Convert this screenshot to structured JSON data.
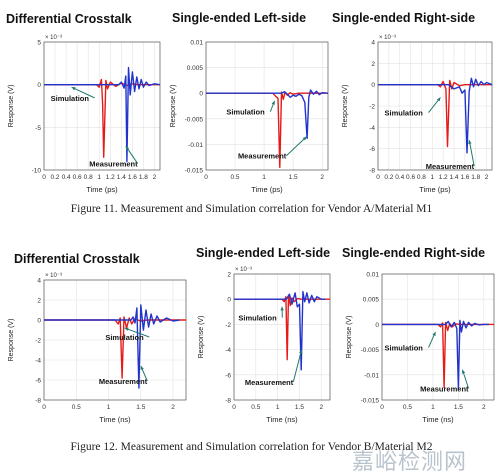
{
  "figure11": {
    "caption": "Figure 11.  Measurement and Simulation correlation for Vendor A/Material M1",
    "panels": [
      {
        "title": "Differential Crosstalk"
      },
      {
        "title": "Single-ended Left-side"
      },
      {
        "title": "Single-ended Right-side"
      }
    ]
  },
  "figure12": {
    "caption": "Figure 12.  Measurement and Simulation correlation for Vendor B/Material M2",
    "panels": [
      {
        "title": "Differential Crosstalk"
      },
      {
        "title": "Single-ended Left-side"
      },
      {
        "title": "Single-ended Right-side"
      }
    ]
  },
  "watermark": {
    "text": "嘉峪检测网"
  },
  "colors": {
    "simulation": "#e41b17",
    "measurement": "#2233cc",
    "annotation_arrow": "#1f7a70",
    "caption_text": "#222222"
  },
  "chart_data": [
    {
      "type": "line",
      "figure": "Figure 11",
      "title": "Differential Crosstalk",
      "xlabel": "Time (ps)",
      "ylabel": "Response (V)",
      "y_exponent": "× 10⁻³",
      "xlim": [
        0,
        2.1
      ],
      "ylim": [
        -10,
        5
      ],
      "xticks": [
        0,
        0.2,
        0.4,
        0.6,
        0.8,
        1,
        1.2,
        1.4,
        1.6,
        1.8,
        2
      ],
      "yticks": [
        -10,
        -5,
        0,
        5
      ],
      "ytick_labels": [
        "-10",
        "-5",
        "0",
        "5"
      ],
      "annotations": [
        {
          "text": "Simulation",
          "x": 0.12,
          "y": -1.9,
          "target_x": 0.5,
          "target_y": -0.3
        },
        {
          "text": "Measurement",
          "x": 0.82,
          "y": -9.6,
          "target_x": 1.48,
          "target_y": -7.2
        }
      ],
      "series": [
        {
          "name": "Simulation",
          "color": "#e41b17",
          "x": [
            0,
            0.95,
            1.0,
            1.04,
            1.06,
            1.08,
            1.12,
            1.15,
            1.2,
            1.3,
            1.4,
            1.5,
            1.6,
            1.7,
            1.8,
            2.1
          ],
          "y": [
            0,
            0,
            -0.3,
            0.6,
            -2.2,
            -8.5,
            0.5,
            -0.5,
            0.3,
            -0.2,
            0.2,
            -0.1,
            0.1,
            0,
            0,
            0
          ]
        },
        {
          "name": "Measurement",
          "color": "#2233cc",
          "x": [
            0,
            1.35,
            1.4,
            1.45,
            1.48,
            1.5,
            1.53,
            1.56,
            1.6,
            1.64,
            1.68,
            1.72,
            1.76,
            1.8,
            1.85,
            1.9,
            2.0,
            2.1
          ],
          "y": [
            0,
            0,
            0.3,
            -0.4,
            1.0,
            -9.0,
            2.0,
            -1.2,
            1.5,
            -0.8,
            0.9,
            -0.5,
            0.6,
            -0.3,
            0.3,
            -0.1,
            0.1,
            0
          ]
        }
      ]
    },
    {
      "type": "line",
      "figure": "Figure 11",
      "title": "Single-ended Left-side",
      "xlabel": "Time (ps)",
      "ylabel": "Response (V)",
      "xlim": [
        0,
        2.1
      ],
      "ylim": [
        -0.015,
        0.01
      ],
      "xticks": [
        0,
        0.5,
        1,
        1.5,
        2
      ],
      "yticks": [
        -0.015,
        -0.01,
        -0.005,
        0,
        0.005,
        0.01
      ],
      "ytick_labels": [
        "-0.015",
        "-0.01",
        "-0.005",
        "0",
        "0.005",
        "0.01"
      ],
      "annotations": [
        {
          "text": "Simulation",
          "x": 0.35,
          "y": -0.0042,
          "target_x": 1.18,
          "target_y": -0.0015
        },
        {
          "text": "Measurement",
          "x": 0.55,
          "y": -0.0128,
          "target_x": 1.73,
          "target_y": -0.0085
        }
      ],
      "series": [
        {
          "name": "Simulation",
          "color": "#e41b17",
          "x": [
            0,
            1.15,
            1.2,
            1.24,
            1.27,
            1.3,
            1.33,
            1.36,
            1.4,
            1.45,
            1.5,
            1.6,
            1.7,
            2.1
          ],
          "y": [
            0,
            0,
            -0.0006,
            -0.001,
            -0.0145,
            0.0002,
            -0.0012,
            0.0002,
            -0.0004,
            0.0001,
            -0.0002,
            0,
            0,
            0
          ]
        },
        {
          "name": "Measurement",
          "color": "#2233cc",
          "x": [
            0,
            1.3,
            1.35,
            1.4,
            1.45,
            1.5,
            1.55,
            1.6,
            1.65,
            1.7,
            1.74,
            1.77,
            1.8,
            1.85,
            1.9,
            1.95,
            2.0,
            2.1
          ],
          "y": [
            0,
            0,
            0.0003,
            -0.0002,
            -0.0008,
            -0.0004,
            -0.0006,
            -0.0002,
            -0.0005,
            -0.0018,
            -0.0088,
            -0.0008,
            0.0006,
            -0.0002,
            0.0004,
            -0.0003,
            0.0001,
            0
          ]
        }
      ]
    },
    {
      "type": "line",
      "figure": "Figure 11",
      "title": "Single-ended Right-side",
      "xlabel": "Time (ps)",
      "ylabel": "Response (V)",
      "y_exponent": "× 10⁻³",
      "xlim": [
        0,
        2.1
      ],
      "ylim": [
        -8,
        4
      ],
      "xticks": [
        0,
        0.2,
        0.4,
        0.6,
        0.8,
        1,
        1.2,
        1.4,
        1.6,
        1.8,
        2
      ],
      "yticks": [
        -8,
        -6,
        -4,
        -2,
        0,
        2,
        4
      ],
      "ytick_labels": [
        "-8",
        "-6",
        "-4",
        "-2",
        "0",
        "2",
        "4"
      ],
      "annotations": [
        {
          "text": "Simulation",
          "x": 0.12,
          "y": -2.9,
          "target_x": 1.15,
          "target_y": -1.2
        },
        {
          "text": "Measurement",
          "x": 0.88,
          "y": -7.9,
          "target_x": 1.68,
          "target_y": -5.2
        }
      ],
      "series": [
        {
          "name": "Simulation",
          "color": "#e41b17",
          "x": [
            0,
            1.1,
            1.15,
            1.2,
            1.25,
            1.28,
            1.32,
            1.36,
            1.4,
            1.5,
            1.6,
            2.1
          ],
          "y": [
            0,
            0,
            -0.2,
            0.3,
            -0.4,
            -5.8,
            0.4,
            -0.4,
            0.2,
            -0.1,
            0,
            0
          ]
        },
        {
          "name": "Measurement",
          "color": "#2233cc",
          "x": [
            0,
            1.3,
            1.4,
            1.5,
            1.55,
            1.6,
            1.64,
            1.68,
            1.72,
            1.76,
            1.8,
            1.85,
            1.9,
            1.95,
            2.0,
            2.1
          ],
          "y": [
            0,
            0,
            -0.4,
            -0.2,
            -0.8,
            -0.5,
            -6.4,
            -0.6,
            0.6,
            -0.2,
            0.5,
            -0.1,
            0.3,
            0,
            0.2,
            0
          ]
        }
      ]
    },
    {
      "type": "line",
      "figure": "Figure 12",
      "title": "Differential Crosstalk",
      "xlabel": "Time (ns)",
      "ylabel": "Response (V)",
      "y_exponent": "× 10⁻³",
      "xlim": [
        0,
        2.2
      ],
      "ylim": [
        -8,
        4
      ],
      "xticks": [
        0,
        0.5,
        1,
        1.5,
        2
      ],
      "yticks": [
        -8,
        -6,
        -4,
        -2,
        0,
        2,
        4
      ],
      "ytick_labels": [
        "-8",
        "-6",
        "-4",
        "-2",
        "0",
        "2",
        "4"
      ],
      "annotations": [
        {
          "text": "Simulation",
          "x": 0.95,
          "y": -2.0,
          "target_x": 1.25,
          "target_y": -0.8
        },
        {
          "text": "Measurement",
          "x": 0.85,
          "y": -6.4,
          "target_x": 1.5,
          "target_y": -4.6
        }
      ],
      "series": [
        {
          "name": "Simulation",
          "color": "#e41b17",
          "x": [
            0,
            1.1,
            1.15,
            1.18,
            1.21,
            1.24,
            1.28,
            1.32,
            1.36,
            1.4,
            1.5,
            1.6,
            2.2
          ],
          "y": [
            0,
            0,
            -0.4,
            0.2,
            -5.8,
            0.3,
            -0.8,
            0.2,
            -0.4,
            0.1,
            -0.1,
            0,
            0
          ]
        },
        {
          "name": "Measurement",
          "color": "#2233cc",
          "x": [
            0,
            1.35,
            1.38,
            1.41,
            1.44,
            1.47,
            1.5,
            1.54,
            1.58,
            1.62,
            1.66,
            1.7,
            1.75,
            1.8,
            1.9,
            2.0,
            2.1
          ],
          "y": [
            0,
            0,
            0.3,
            -0.3,
            1.2,
            -6.8,
            1.5,
            -1.0,
            1.0,
            -0.7,
            0.6,
            -0.4,
            0.4,
            -0.2,
            0.2,
            -0.1,
            0
          ]
        }
      ]
    },
    {
      "type": "line",
      "figure": "Figure 12",
      "title": "Single-ended Left-side",
      "xlabel": "Time (ns)",
      "ylabel": "Response (V)",
      "y_exponent": "× 10⁻³",
      "xlim": [
        0,
        2.2
      ],
      "ylim": [
        -8,
        2
      ],
      "xticks": [
        0,
        0.5,
        1,
        1.5,
        2
      ],
      "yticks": [
        -8,
        -6,
        -4,
        -2,
        0,
        2
      ],
      "ytick_labels": [
        "-8",
        "-6",
        "-4",
        "-2",
        "0",
        "2"
      ],
      "annotations": [
        {
          "text": "Simulation",
          "x": 0.1,
          "y": -1.7,
          "target_x": 1.1,
          "target_y": -0.6
        },
        {
          "text": "Measurement",
          "x": 0.25,
          "y": -6.8,
          "target_x": 1.55,
          "target_y": -4.0
        }
      ],
      "series": [
        {
          "name": "Simulation",
          "color": "#e41b17",
          "x": [
            0,
            1.1,
            1.15,
            1.19,
            1.22,
            1.25,
            1.29,
            1.33,
            1.38,
            1.45,
            1.55,
            2.2
          ],
          "y": [
            0,
            0,
            -0.2,
            0.2,
            -4.8,
            0.3,
            -0.5,
            0.1,
            -0.2,
            0.05,
            0,
            0
          ]
        },
        {
          "name": "Measurement",
          "color": "#2233cc",
          "x": [
            0,
            1.2,
            1.27,
            1.33,
            1.4,
            1.45,
            1.5,
            1.54,
            1.58,
            1.62,
            1.67,
            1.72,
            1.78,
            1.84,
            1.9,
            2.0,
            2.1
          ],
          "y": [
            0,
            0,
            0.4,
            -0.4,
            0.5,
            -0.6,
            -0.4,
            -5.6,
            0.6,
            -0.2,
            0.5,
            -0.3,
            0.3,
            -0.2,
            0.2,
            0,
            0
          ]
        }
      ]
    },
    {
      "type": "line",
      "figure": "Figure 12",
      "title": "Single-ended Right-side",
      "xlabel": "Time (ns)",
      "ylabel": "Response (V)",
      "xlim": [
        0,
        2.2
      ],
      "ylim": [
        -0.015,
        0.01
      ],
      "xticks": [
        0,
        0.5,
        1,
        1.5,
        2
      ],
      "yticks": [
        -0.015,
        -0.01,
        -0.005,
        0,
        0.005,
        0.01
      ],
      "ytick_labels": [
        "-0.015",
        "-0.01",
        "-0.005",
        "0",
        "0.005",
        "0.01"
      ],
      "annotations": [
        {
          "text": "Simulation",
          "x": 0.05,
          "y": -0.0052,
          "target_x": 1.05,
          "target_y": -0.0015
        },
        {
          "text": "Measurement",
          "x": 0.75,
          "y": -0.0133,
          "target_x": 1.58,
          "target_y": -0.009
        }
      ],
      "series": [
        {
          "name": "Simulation",
          "color": "#e41b17",
          "x": [
            0,
            1.1,
            1.15,
            1.19,
            1.22,
            1.25,
            1.29,
            1.33,
            1.38,
            1.45,
            1.55,
            2.2
          ],
          "y": [
            0,
            0,
            -0.0005,
            0.0003,
            -0.0125,
            0.0004,
            -0.0012,
            0.0002,
            -0.0005,
            0.0001,
            0,
            0
          ]
        },
        {
          "name": "Measurement",
          "color": "#2233cc",
          "x": [
            0,
            1.25,
            1.3,
            1.36,
            1.42,
            1.47,
            1.5,
            1.53,
            1.56,
            1.6,
            1.65,
            1.7,
            1.76,
            1.82,
            1.9,
            2.0,
            2.1
          ],
          "y": [
            0,
            0,
            0.0006,
            -0.0005,
            0.0004,
            -0.0008,
            -0.0128,
            0.0008,
            -0.0015,
            0.0006,
            -0.0007,
            0.0004,
            -0.0003,
            0.0002,
            -0.0001,
            0,
            0
          ]
        }
      ]
    }
  ]
}
